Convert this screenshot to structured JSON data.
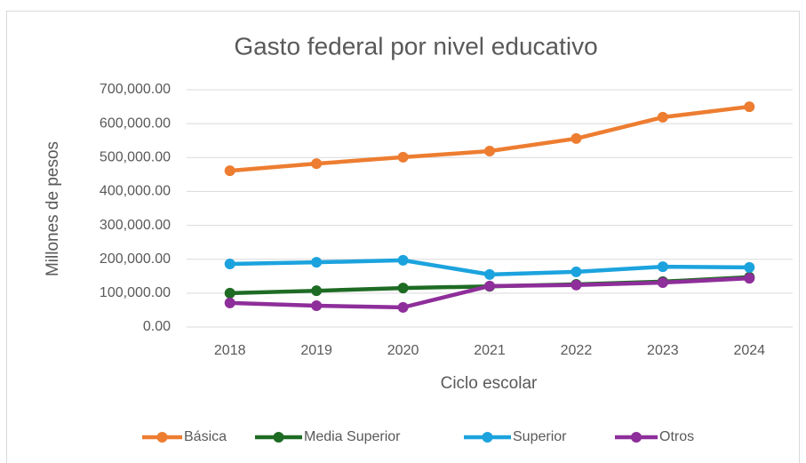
{
  "chart_data": {
    "type": "line",
    "title": "Gasto federal por nivel educativo",
    "x_label": "Ciclo escolar",
    "y_label": "Millones de pesos",
    "categories": [
      "2018",
      "2019",
      "2020",
      "2021",
      "2022",
      "2023",
      "2024"
    ],
    "series": [
      {
        "name": "Básica",
        "color": "#ed7d31",
        "values": [
          461000,
          482000,
          501000,
          519000,
          556000,
          619000,
          650000
        ]
      },
      {
        "name": "Media Superior",
        "color": "#1e6b24",
        "values": [
          100000,
          107000,
          115000,
          120000,
          126000,
          134000,
          147000
        ]
      },
      {
        "name": "Superior",
        "color": "#1ca3de",
        "values": [
          186000,
          191000,
          197000,
          155000,
          163000,
          178000,
          176000
        ]
      },
      {
        "name": "Otros",
        "color": "#8e2e9a",
        "values": [
          71000,
          63000,
          58000,
          121000,
          124000,
          131000,
          144000
        ]
      }
    ],
    "ylim": [
      0,
      700000
    ],
    "yticks": [
      {
        "value": 0,
        "label": "0.00"
      },
      {
        "value": 100000,
        "label": "100,000.00"
      },
      {
        "value": 200000,
        "label": "200,000.00"
      },
      {
        "value": 300000,
        "label": "300,000.00"
      },
      {
        "value": 400000,
        "label": "400,000.00"
      },
      {
        "value": 500000,
        "label": "500,000.00"
      },
      {
        "value": 600000,
        "label": "600,000.00"
      },
      {
        "value": 700000,
        "label": "700,000.00"
      }
    ],
    "grid": true,
    "legend": "bottom"
  }
}
